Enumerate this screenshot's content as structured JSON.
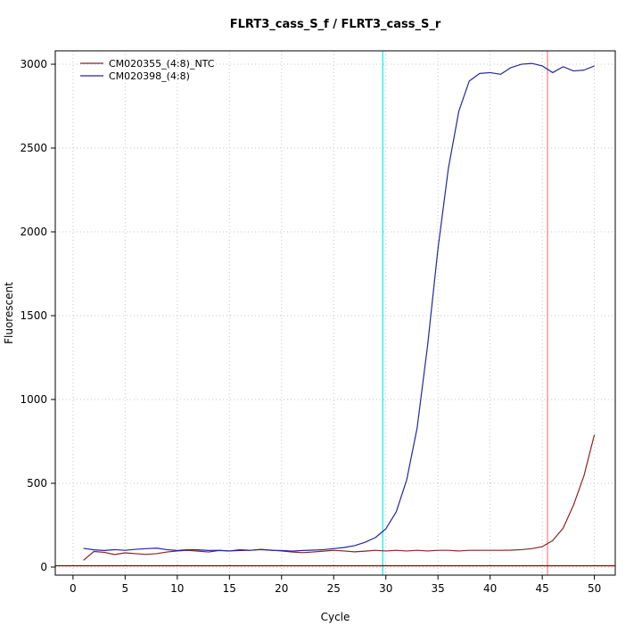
{
  "chart_data": {
    "type": "line",
    "title": "FLRT3_cass_S_f / FLRT3_cass_S_r",
    "xlabel": "Cycle",
    "ylabel": "Fluorescent",
    "x_ticks": [
      0,
      5,
      10,
      15,
      20,
      25,
      30,
      35,
      40,
      45,
      50
    ],
    "y_ticks": [
      0,
      500,
      1000,
      1500,
      2000,
      2500,
      3000
    ],
    "xlim": [
      -1.7,
      52.0
    ],
    "ylim": [
      -48,
      3080
    ],
    "grid": true,
    "grid_color": "#c6c6c6",
    "legend_position": "top-left",
    "x": [
      1,
      2,
      3,
      4,
      5,
      6,
      7,
      8,
      9,
      10,
      11,
      12,
      13,
      14,
      15,
      16,
      17,
      18,
      19,
      20,
      21,
      22,
      23,
      24,
      25,
      26,
      27,
      28,
      29,
      30,
      31,
      32,
      33,
      34,
      35,
      36,
      37,
      38,
      39,
      40,
      41,
      42,
      43,
      44,
      45,
      46,
      47,
      48,
      49,
      50
    ],
    "series": [
      {
        "name": "CM020355_(4:8)_NTC",
        "color": "#8B2323",
        "values": [
          40,
          93,
          88,
          75,
          85,
          80,
          76,
          80,
          90,
          96,
          100,
          95,
          90,
          99,
          96,
          104,
          100,
          106,
          101,
          96,
          90,
          86,
          90,
          95,
          100,
          96,
          91,
          95,
          100,
          96,
          100,
          96,
          100,
          96,
          100,
          100,
          96,
          100,
          100,
          100,
          100,
          101,
          104,
          110,
          122,
          158,
          232,
          370,
          545,
          790
        ]
      },
      {
        "name": "CM020398_(4:8)",
        "color": "#26269B",
        "values": [
          112,
          103,
          99,
          104,
          100,
          106,
          110,
          113,
          104,
          99,
          104,
          103,
          99,
          100,
          96,
          99,
          100,
          104,
          100,
          99,
          95,
          99,
          101,
          104,
          110,
          117,
          128,
          148,
          176,
          228,
          330,
          520,
          830,
          1320,
          1900,
          2380,
          2720,
          2900,
          2945,
          2950,
          2940,
          2980,
          3000,
          3005,
          2990,
          2950,
          2985,
          2960,
          2965,
          2990
        ]
      }
    ],
    "threshold_line": {
      "y": 8,
      "color": "#8B0000"
    },
    "vertical_lines": [
      {
        "name": "ct-marker-cyan",
        "x": 29.7,
        "color": "#00EEEE"
      },
      {
        "name": "ct-marker-salmon",
        "x": 45.5,
        "color": "#F08080"
      }
    ]
  }
}
